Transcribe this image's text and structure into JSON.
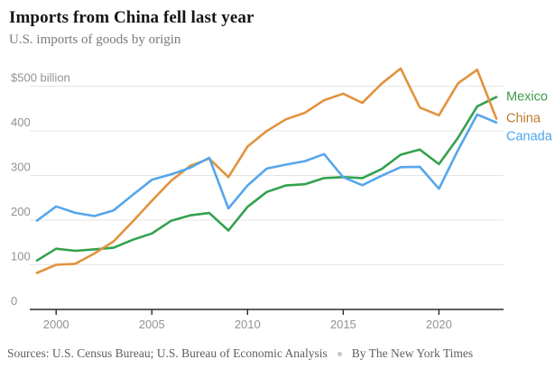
{
  "header": {
    "title": "Imports from China fell last year",
    "subtitle": "U.S. imports of goods by origin"
  },
  "chart_data": {
    "type": "line",
    "title": "Imports from China fell last year",
    "subtitle": "U.S. imports of goods by origin",
    "unit": "billions of U.S. dollars",
    "x": [
      1999,
      2000,
      2001,
      2002,
      2003,
      2004,
      2005,
      2006,
      2007,
      2008,
      2009,
      2010,
      2011,
      2012,
      2013,
      2014,
      2015,
      2016,
      2017,
      2018,
      2019,
      2020,
      2021,
      2022,
      2023
    ],
    "series": [
      {
        "name": "Mexico",
        "color": "#33a14e",
        "label_color": "#3d9a4d",
        "values": [
          109.7,
          135.9,
          131.3,
          134.6,
          138.1,
          155.9,
          170.1,
          198.3,
          210.7,
          215.9,
          176.7,
          229.7,
          263.1,
          277.6,
          280.5,
          294.2,
          296.4,
          294.2,
          314.3,
          346.5,
          358.0,
          325.4,
          384.7,
          454.8,
          475.6
        ]
      },
      {
        "name": "China",
        "color": "#e2923d",
        "label_color": "#b87a2e",
        "values": [
          81.8,
          100.0,
          102.3,
          125.2,
          152.4,
          196.7,
          243.5,
          287.8,
          321.4,
          337.8,
          296.4,
          364.9,
          399.4,
          425.6,
          440.4,
          468.5,
          483.2,
          462.5,
          505.5,
          539.5,
          452.2,
          434.7,
          506.4,
          536.8,
          427.2
        ]
      },
      {
        "name": "Canada",
        "color": "#55a6ec",
        "label_color": "#4aa4ee",
        "values": [
          198.7,
          230.8,
          216.3,
          209.1,
          221.6,
          256.4,
          290.4,
          302.4,
          317.1,
          339.5,
          226.2,
          277.6,
          315.3,
          324.3,
          332.1,
          347.8,
          296.2,
          278.1,
          299.3,
          318.5,
          319.4,
          270.4,
          357.2,
          436.6,
          418.6
        ]
      }
    ],
    "y_axis": {
      "range": [
        0,
        560
      ],
      "ticks": [
        {
          "value": 0,
          "label": "0"
        },
        {
          "value": 100,
          "label": "100"
        },
        {
          "value": 200,
          "label": "200"
        },
        {
          "value": 300,
          "label": "300"
        },
        {
          "value": 400,
          "label": "400"
        },
        {
          "value": 500,
          "label": "$500 billion"
        }
      ]
    },
    "x_axis": {
      "range": [
        1999,
        2023
      ],
      "ticks": [
        {
          "value": 2000,
          "label": "2000"
        },
        {
          "value": 2005,
          "label": "2005"
        },
        {
          "value": 2010,
          "label": "2010"
        },
        {
          "value": 2015,
          "label": "2015"
        },
        {
          "value": 2020,
          "label": "2020"
        }
      ]
    },
    "grid": true,
    "legend_position": "right-of-line-ends",
    "style": {
      "grid_color": "#e4e4e4",
      "axis_color": "#2b2b2b",
      "tick_label_color": "#929292",
      "line_width": 2.6
    }
  },
  "footer": {
    "sources": "Sources: U.S. Census Bureau; U.S. Bureau of Economic Analysis",
    "byline": "By The New York Times"
  }
}
